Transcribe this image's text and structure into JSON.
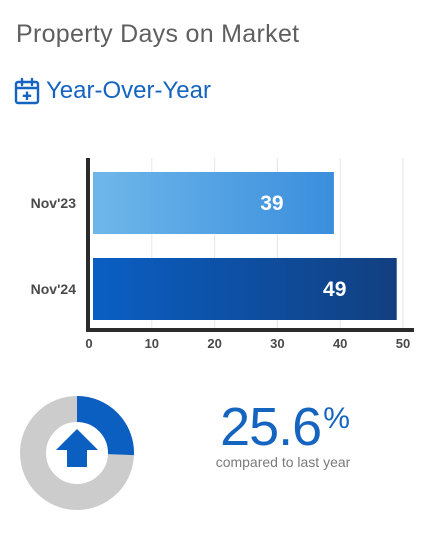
{
  "header": {
    "title": "Property Days on Market",
    "subtitle": "Year-Over-Year"
  },
  "colors": {
    "accent": "#1565c0",
    "bar_light_start": "#6fb7ea",
    "bar_light_end": "#3a8edc",
    "bar_dark_start": "#0a5fc4",
    "bar_dark_end": "#123f80",
    "donut_gray": "#cccccc",
    "donut_blue": "#0b5fc1"
  },
  "chart_data": {
    "type": "bar",
    "orientation": "horizontal",
    "categories": [
      "Nov'23",
      "Nov'24"
    ],
    "values": [
      39,
      49
    ],
    "data_labels": [
      "39",
      "49"
    ],
    "xlim": [
      0,
      50
    ],
    "x_ticks": [
      "0",
      "10",
      "20",
      "30",
      "40",
      "50"
    ],
    "grid": true
  },
  "summary": {
    "change_value": "25.6",
    "change_symbol": "%",
    "change_fraction": 0.256,
    "direction_icon": "arrow-up-icon",
    "compare_text": "compared to last year"
  }
}
